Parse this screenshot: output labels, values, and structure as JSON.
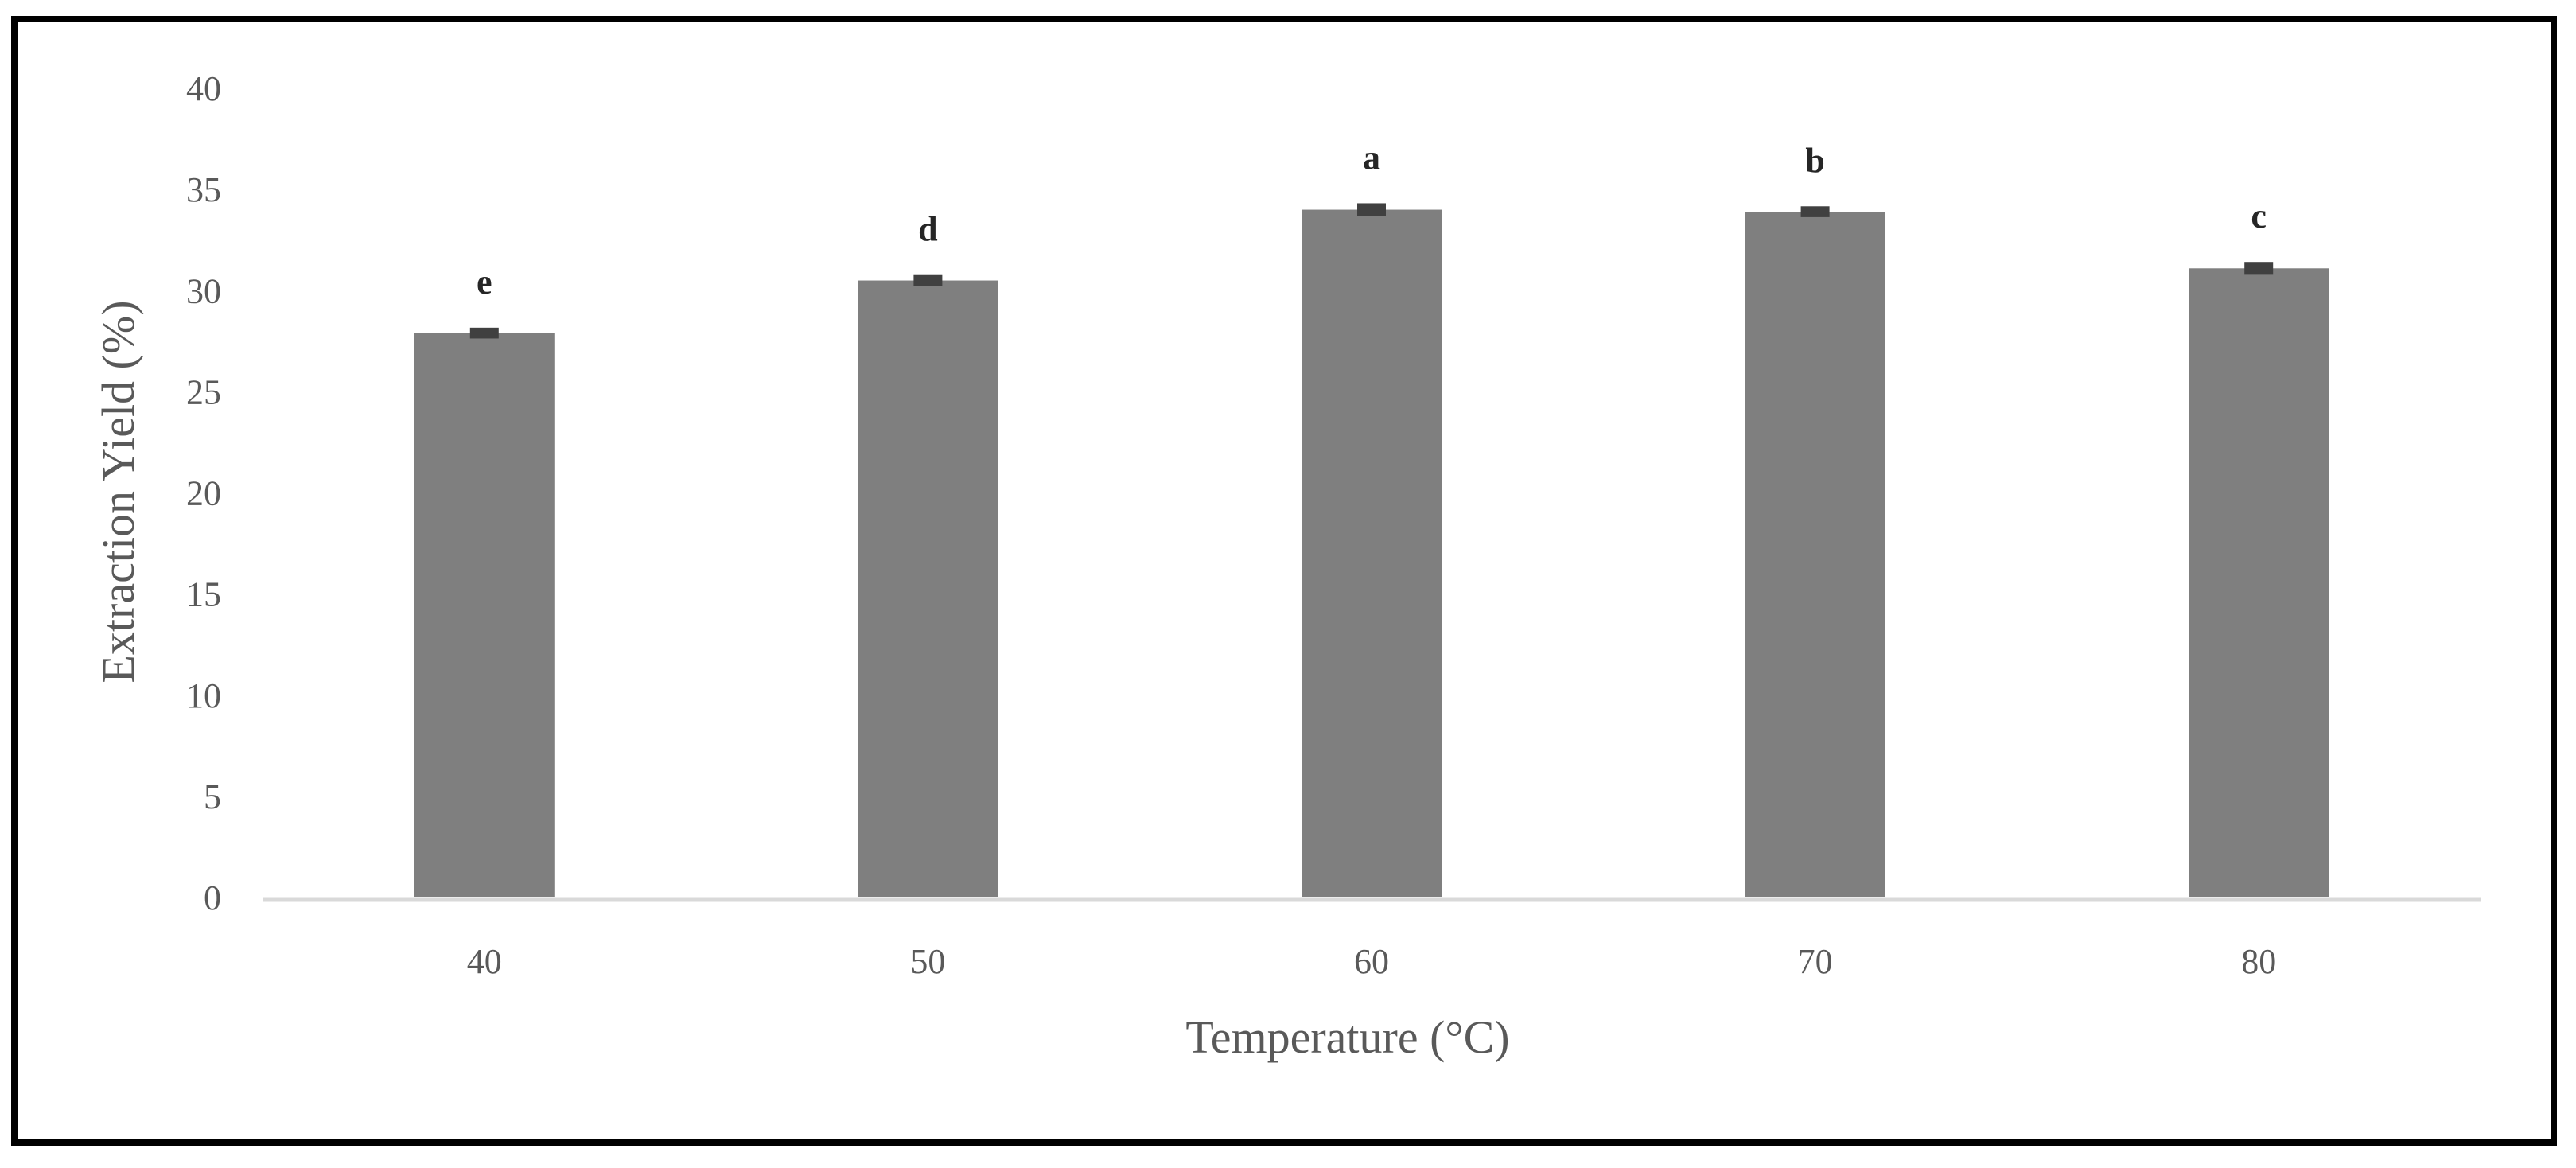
{
  "chart_data": {
    "type": "bar",
    "title": "",
    "xlabel": "Temperature (°C)",
    "ylabel": "Extraction Yield (%)",
    "categories": [
      "40",
      "50",
      "60",
      "70",
      "80"
    ],
    "values": [
      27.9,
      30.5,
      34.0,
      33.9,
      31.1
    ],
    "errors": [
      0.15,
      0.15,
      0.2,
      0.15,
      0.2
    ],
    "significance_labels": [
      "e",
      "d",
      "a",
      "b",
      "c"
    ],
    "ylim": [
      0,
      40
    ],
    "yticks": [
      "0",
      "5",
      "10",
      "15",
      "20",
      "25",
      "30",
      "35",
      "40"
    ],
    "grid": false,
    "legend": "none",
    "colors": {
      "bar": "#7f7f7f",
      "error_cap": "#404040",
      "axis": "#d9d9d9",
      "text": "#595959"
    }
  }
}
